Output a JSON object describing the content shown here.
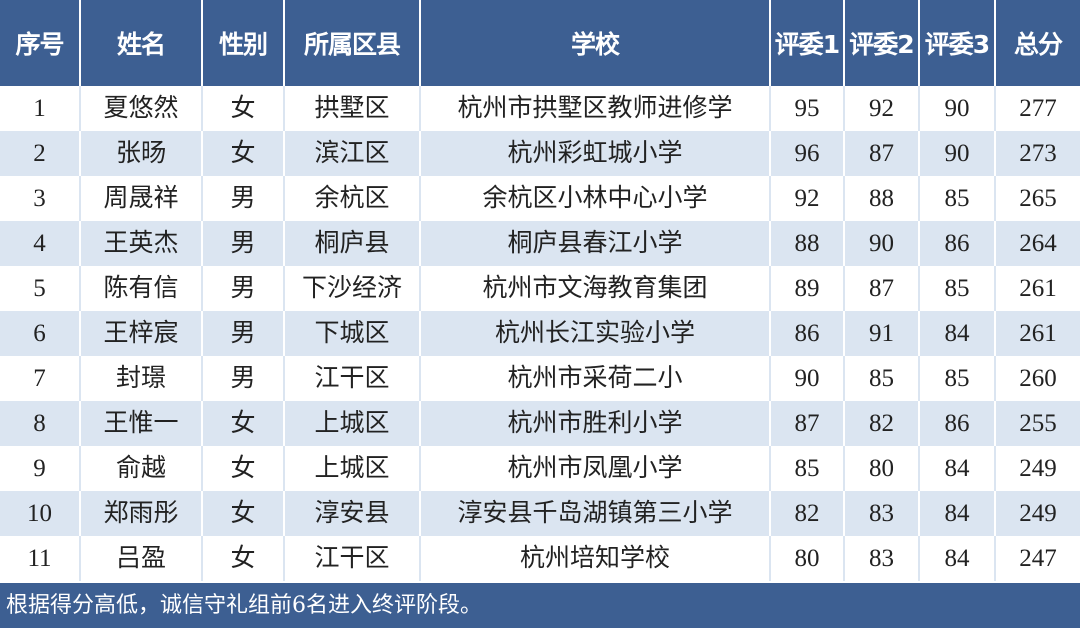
{
  "table": {
    "header": [
      "序号",
      "姓名",
      "性别",
      "所属区县",
      "学校",
      "评委1",
      "评委2",
      "评委3",
      "总分"
    ],
    "rows": [
      [
        1,
        "夏悠然",
        "女",
        "拱墅区",
        "杭州市拱墅区教师进修学",
        95,
        92,
        90,
        277
      ],
      [
        2,
        "张旸",
        "女",
        "滨江区",
        "杭州彩虹城小学",
        96,
        87,
        90,
        273
      ],
      [
        3,
        "周晟祥",
        "男",
        "余杭区",
        "余杭区小林中心小学",
        92,
        88,
        85,
        265
      ],
      [
        4,
        "王英杰",
        "男",
        "桐庐县",
        "桐庐县春江小学",
        88,
        90,
        86,
        264
      ],
      [
        5,
        "陈有信",
        "男",
        "下沙经济",
        "杭州市文海教育集团",
        89,
        87,
        85,
        261
      ],
      [
        6,
        "王梓宸",
        "男",
        "下城区",
        "杭州长江实验小学",
        86,
        91,
        84,
        261
      ],
      [
        7,
        "封璟",
        "男",
        "江干区",
        "杭州市采荷二小",
        90,
        85,
        85,
        260
      ],
      [
        8,
        "王惟一",
        "女",
        "上城区",
        "杭州市胜利小学",
        87,
        82,
        86,
        255
      ],
      [
        9,
        "俞越",
        "女",
        "上城区",
        "杭州市凤凰小学",
        85,
        80,
        84,
        249
      ],
      [
        10,
        "郑雨彤",
        "女",
        "淳安县",
        "淳安县千岛湖镇第三小学",
        82,
        83,
        84,
        249
      ],
      [
        11,
        "吕盈",
        "女",
        "江干区",
        "杭州培知学校",
        80,
        83,
        84,
        247
      ]
    ]
  },
  "footer": {
    "note": "根据得分高低，诚信守礼组前6名进入终评阶段。"
  }
}
